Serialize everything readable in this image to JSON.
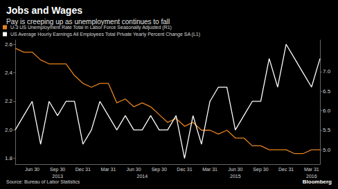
{
  "chart_data": {
    "type": "line",
    "title": "Jobs and Wages",
    "subtitle": "Pay is creeping up as unemployment continues to fall",
    "source": "Source: Bureau of Labor Statistics",
    "credit": "Bloomberg",
    "categories": [
      null,
      null,
      "Jun 30",
      null,
      null,
      "Sep 30",
      null,
      null,
      "Dec 31",
      null,
      null,
      "Mar 31",
      null,
      null,
      "Jun 30",
      null,
      null,
      "Sep 30",
      null,
      null,
      "Dec 31",
      null,
      null,
      "Mar 31",
      null,
      null,
      "Jun 30",
      null,
      null,
      "Sep 30",
      null,
      null,
      "Dec 31",
      null,
      null,
      "Mar 31",
      null
    ],
    "year_labels": [
      null,
      null,
      null,
      null,
      null,
      "2013",
      null,
      null,
      null,
      null,
      null,
      null,
      null,
      null,
      null,
      "2014",
      null,
      null,
      null,
      null,
      null,
      null,
      null,
      null,
      null,
      null,
      "2015",
      null,
      null,
      null,
      null,
      null,
      null,
      null,
      null,
      "2016",
      null
    ],
    "series": [
      {
        "name": "U-3 US Unemployment Rate Total in Labor Force Seasonally Adjusted (R1)",
        "color": "#e8821e",
        "axis": "y2",
        "values": [
          7.6,
          7.5,
          7.5,
          7.3,
          7.2,
          7.2,
          7.2,
          6.9,
          6.7,
          6.6,
          6.7,
          6.7,
          6.2,
          6.3,
          6.1,
          6.2,
          6.1,
          5.9,
          5.7,
          5.8,
          5.6,
          5.7,
          5.5,
          5.5,
          5.4,
          5.5,
          5.3,
          5.3,
          5.1,
          5.1,
          5.0,
          5.0,
          5.0,
          4.9,
          4.9,
          5.0,
          5.0
        ]
      },
      {
        "name": "US Average Hourly Earnings All Employees Total Private Yearly Percent Change SA (L1)",
        "color": "#ffffff",
        "values": [
          2.0,
          2.1,
          2.2,
          1.9,
          2.2,
          2.1,
          2.2,
          2.2,
          1.9,
          2.0,
          2.2,
          2.1,
          2.0,
          2.1,
          2.0,
          2.0,
          2.1,
          2.0,
          2.0,
          2.1,
          1.8,
          2.1,
          1.9,
          2.2,
          2.3,
          2.3,
          2.0,
          2.1,
          2.2,
          2.2,
          2.5,
          2.3,
          2.6,
          2.5,
          2.4,
          2.3,
          2.5
        ]
      }
    ],
    "ylim": [
      1.76,
      2.63
    ],
    "yticks": [
      1.8,
      {
        "value": 2,
        "label": "2.0"
      },
      2.2,
      2.4,
      2.6
    ],
    "y2lim": [
      4.63,
      7.81
    ],
    "y2ticks": [
      {
        "value": 5,
        "label": "5.0"
      },
      5.5,
      {
        "value": 6,
        "label": "6.0"
      },
      6.5,
      {
        "value": 7,
        "label": "7.0"
      }
    ],
    "grid": false,
    "legend": "top-left"
  }
}
